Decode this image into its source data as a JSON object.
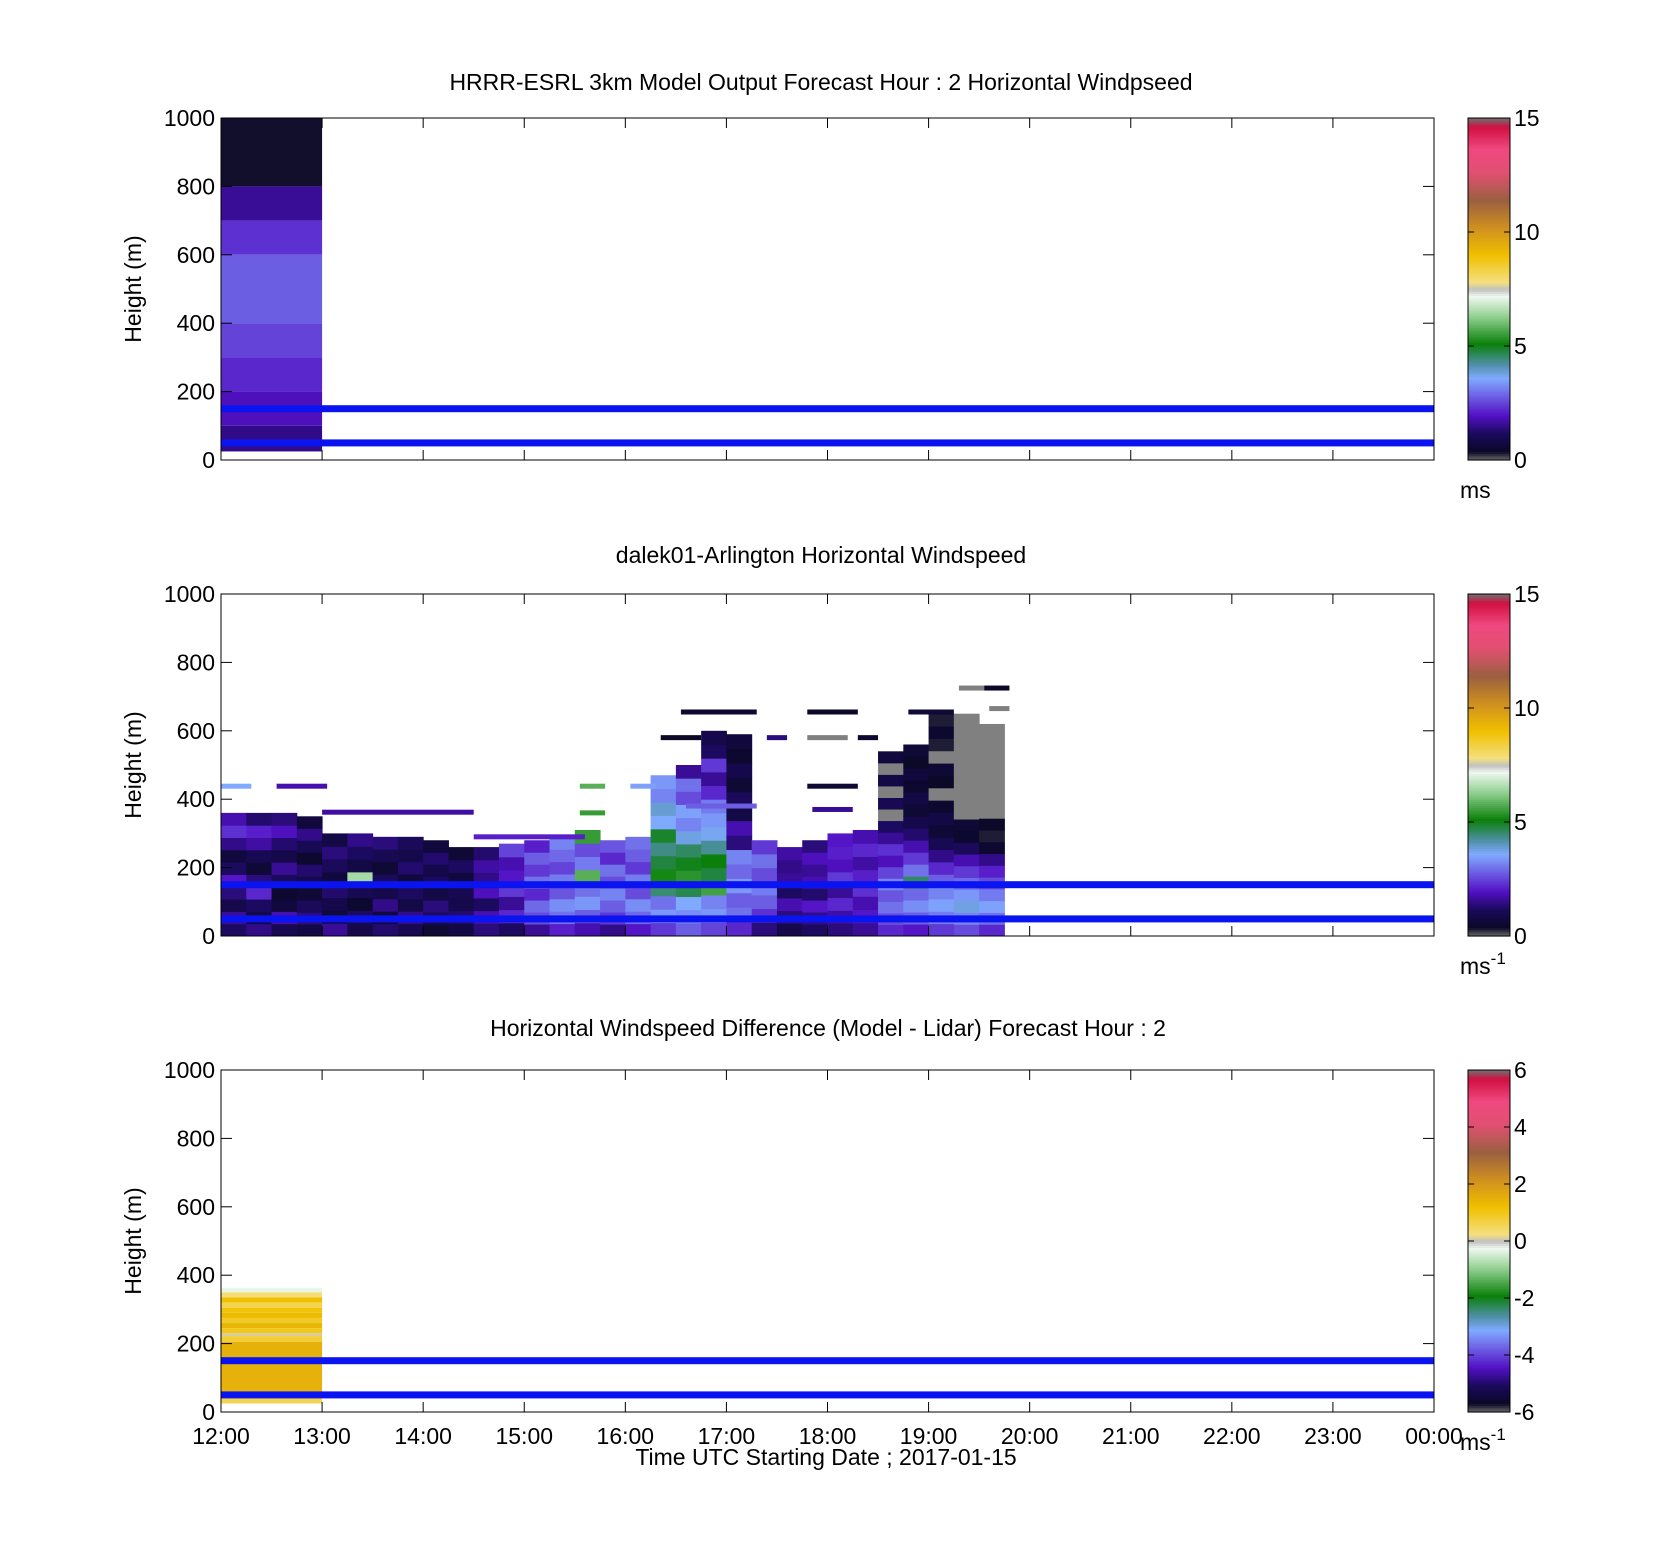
{
  "figure": {
    "xlabel": "Time UTC  Starting Date ; 2017-01-15",
    "x_ticks": [
      "12:00",
      "13:00",
      "14:00",
      "15:00",
      "16:00",
      "17:00",
      "18:00",
      "19:00",
      "20:00",
      "21:00",
      "22:00",
      "23:00",
      "00:00"
    ]
  },
  "chart_data": [
    {
      "type": "heatmap",
      "title": "HRRR-ESRL 3km Model Output   Forecast Hour : 2 Horizontal Windpseed",
      "ylabel": "Height (m)",
      "xlim_hours": [
        12,
        24
      ],
      "ylim": [
        0,
        1000
      ],
      "y_ticks": [
        "1000",
        "800",
        "600",
        "400",
        "200",
        "0"
      ],
      "colorbar": {
        "min": 0,
        "max": 15,
        "ticks": [
          "15",
          "10",
          "5",
          "0"
        ],
        "unit_base": "ms",
        "unit_sup": ""
      },
      "reference_lines_m": [
        150,
        50
      ],
      "reference_line_color": "#0a14f0",
      "cells": [
        {
          "t0": 12,
          "t1": 13,
          "h0": 800,
          "h1": 1000,
          "v": 0.35
        },
        {
          "t0": 12,
          "t1": 13,
          "h0": 700,
          "h1": 800,
          "v": 1.6
        },
        {
          "t0": 12,
          "t1": 13,
          "h0": 600,
          "h1": 700,
          "v": 2.3
        },
        {
          "t0": 12,
          "t1": 13,
          "h0": 400,
          "h1": 600,
          "v": 2.8
        },
        {
          "t0": 12,
          "t1": 13,
          "h0": 300,
          "h1": 400,
          "v": 2.5
        },
        {
          "t0": 12,
          "t1": 13,
          "h0": 200,
          "h1": 300,
          "v": 2.2
        },
        {
          "t0": 12,
          "t1": 13,
          "h0": 100,
          "h1": 200,
          "v": 1.9
        },
        {
          "t0": 12,
          "t1": 13,
          "h0": 25,
          "h1": 100,
          "v": 1.5
        }
      ]
    },
    {
      "type": "heatmap",
      "title": "dalek01-Arlington  Horizontal Windspeed",
      "ylabel": "Height (m)",
      "xlim_hours": [
        12,
        24
      ],
      "ylim": [
        0,
        1000
      ],
      "y_ticks": [
        "1000",
        "800",
        "600",
        "400",
        "200",
        "0"
      ],
      "colorbar": {
        "min": 0,
        "max": 15,
        "ticks": [
          "15",
          "10",
          "5",
          "0"
        ],
        "unit_base": "ms",
        "unit_sup": "-1"
      },
      "reference_lines_m": [
        150,
        50
      ],
      "reference_line_color": "#0a14f0",
      "columns": [
        {
          "t0": 12.0,
          "t1": 12.25,
          "top": 360,
          "v": [
            1.2,
            1.6,
            0.9,
            1.4,
            2.0,
            1.2,
            0.7,
            1.5,
            2.3,
            1.8
          ]
        },
        {
          "t0": 12.25,
          "t1": 12.5,
          "top": 360,
          "v": [
            1.5,
            0.8,
            1.2,
            2.2,
            1.4,
            0.6,
            1.0,
            1.7,
            2.1,
            1.3
          ]
        },
        {
          "t0": 12.5,
          "t1": 12.75,
          "top": 360,
          "v": [
            1.0,
            1.8,
            0.7,
            0.5,
            1.1,
            1.6,
            0.9,
            1.3,
            1.9,
            1.4
          ]
        },
        {
          "t0": 12.75,
          "t1": 13.0,
          "top": 350,
          "v": [
            0.8,
            1.4,
            1.1,
            0.6,
            0.9,
            1.3,
            0.5,
            1.0,
            1.5,
            0.7
          ]
        },
        {
          "t0": 13.0,
          "t1": 13.25,
          "top": 300,
          "v": [
            1.6,
            0.6,
            0.9,
            1.3,
            0.7,
            1.1,
            1.4,
            0.8
          ]
        },
        {
          "t0": 13.25,
          "t1": 13.5,
          "top": 300,
          "v": [
            0.9,
            1.2,
            0.5,
            1.0,
            6.5,
            0.8,
            1.2,
            1.5
          ]
        },
        {
          "t0": 13.5,
          "t1": 13.75,
          "top": 290,
          "v": [
            1.3,
            0.7,
            1.5,
            0.9,
            1.1,
            0.6,
            1.0,
            1.4
          ]
        },
        {
          "t0": 13.75,
          "t1": 14.0,
          "top": 290,
          "v": [
            1.0,
            1.5,
            0.8,
            1.2,
            0.7,
            1.3,
            0.9,
            1.1
          ]
        },
        {
          "t0": 14.0,
          "t1": 14.25,
          "top": 280,
          "v": [
            0.6,
            1.1,
            1.4,
            0.8,
            1.2,
            0.9,
            1.3,
            0.7
          ]
        },
        {
          "t0": 14.25,
          "t1": 14.5,
          "top": 260,
          "v": [
            0.8,
            1.3,
            0.9,
            1.0,
            0.7,
            1.2,
            0.6
          ]
        },
        {
          "t0": 14.5,
          "t1": 14.75,
          "top": 260,
          "v": [
            1.4,
            1.8,
            1.2,
            1.9,
            1.5,
            1.7,
            1.3
          ]
        },
        {
          "t0": 14.75,
          "t1": 15.0,
          "top": 270,
          "v": [
            1.2,
            2.2,
            1.6,
            2.4,
            2.0,
            1.8,
            2.5
          ]
        },
        {
          "t0": 15.0,
          "t1": 15.25,
          "top": 280,
          "v": [
            1.6,
            2.6,
            2.9,
            2.2,
            3.0,
            2.4,
            2.8,
            2.1
          ]
        },
        {
          "t0": 15.25,
          "t1": 15.5,
          "top": 290,
          "v": [
            2.1,
            3.0,
            3.3,
            2.7,
            3.1,
            2.5,
            2.9,
            3.2
          ]
        },
        {
          "t0": 15.5,
          "t1": 15.75,
          "top": 310,
          "v": [
            1.8,
            2.8,
            3.4,
            3.0,
            5.8,
            3.1,
            2.6,
            5.5
          ]
        },
        {
          "t0": 15.75,
          "t1": 16.0,
          "top": 280,
          "v": [
            1.5,
            2.4,
            2.8,
            3.2,
            2.6,
            3.0,
            2.2,
            2.7
          ]
        },
        {
          "t0": 16.0,
          "t1": 16.25,
          "top": 290,
          "v": [
            2.0,
            2.9,
            3.3,
            2.6,
            3.1,
            2.4,
            2.8,
            3.0
          ]
        },
        {
          "t0": 16.25,
          "t1": 16.5,
          "top": 470,
          "v": [
            2.4,
            3.4,
            3.0,
            4.5,
            5.2,
            4.8,
            4.4,
            4.9,
            3.6,
            3.9,
            3.2,
            3.4
          ]
        },
        {
          "t0": 16.5,
          "t1": 16.75,
          "top": 500,
          "v": [
            2.8,
            3.3,
            3.6,
            4.7,
            5.4,
            5.0,
            4.6,
            3.8,
            3.2,
            3.5,
            2.6,
            3.0,
            1.6
          ]
        },
        {
          "t0": 16.75,
          "t1": 17.0,
          "top": 600,
          "v": [
            2.5,
            3.4,
            3.2,
            5.6,
            4.8,
            5.1,
            4.3,
            3.7,
            3.4,
            3.1,
            2.2,
            1.6,
            2.4,
            1.2,
            0.9
          ]
        },
        {
          "t0": 17.0,
          "t1": 17.25,
          "top": 590,
          "v": [
            2.2,
            3.0,
            2.8,
            3.4,
            2.9,
            3.2,
            1.4,
            1.8,
            0.8,
            1.1,
            0.6,
            0.9,
            0.5,
            0.7
          ]
        },
        {
          "t0": 17.25,
          "t1": 17.5,
          "top": 280,
          "v": [
            1.4,
            2.3,
            2.8,
            3.1,
            2.6,
            3.0,
            2.4
          ]
        },
        {
          "t0": 17.5,
          "t1": 17.75,
          "top": 260,
          "v": [
            0.9,
            1.4,
            1.8,
            1.2,
            1.6,
            1.5,
            1.7
          ]
        },
        {
          "t0": 17.75,
          "t1": 18.0,
          "top": 280,
          "v": [
            1.2,
            1.5,
            2.0,
            1.3,
            1.8,
            1.6,
            1.9,
            1.4
          ]
        },
        {
          "t0": 18.0,
          "t1": 18.25,
          "top": 300,
          "v": [
            1.4,
            1.7,
            2.2,
            1.6,
            2.4,
            1.9,
            2.1,
            2.0
          ]
        },
        {
          "t0": 18.25,
          "t1": 18.5,
          "top": 310,
          "v": [
            1.6,
            2.0,
            1.8,
            2.3,
            2.1,
            1.7,
            2.2,
            1.8
          ]
        },
        {
          "t0": 18.5,
          "t1": 18.75,
          "top": 540,
          "v": [
            2.2,
            2.6,
            3.0,
            2.7,
            3.2,
            2.5,
            1.9,
            2.3,
            1.6,
            1.2,
            15.5,
            1.0,
            15.5,
            0.8,
            15.5,
            0.7
          ]
        },
        {
          "t0": 18.75,
          "t1": 19.0,
          "top": 560,
          "v": [
            2.0,
            2.8,
            3.3,
            2.9,
            4.6,
            3.0,
            2.4,
            1.8,
            1.3,
            0.9,
            0.6,
            0.8,
            0.5,
            0.7,
            0.4,
            0.6
          ]
        },
        {
          "t0": 19.0,
          "t1": 19.25,
          "top": 650,
          "v": [
            2.4,
            3.1,
            3.5,
            3.2,
            2.8,
            2.2,
            1.5,
            1.0,
            0.6,
            0.8,
            0.5,
            15.5,
            0.4,
            0.6,
            15.5,
            0.3,
            0.5,
            0.3
          ]
        },
        {
          "t0": 19.25,
          "t1": 19.5,
          "top": 650,
          "v": [
            2.6,
            3.2,
            3.8,
            3.4,
            2.9,
            2.4,
            1.8,
            1.1,
            0.5,
            0.6,
            15.5,
            15.5,
            15.5,
            15.5,
            15.5,
            15.5,
            15.5,
            15.5,
            15.5
          ]
        },
        {
          "t0": 19.5,
          "t1": 19.75,
          "top": 620,
          "v": [
            2.2,
            3.0,
            3.5,
            3.1,
            2.6,
            2.1,
            1.5,
            0.5,
            0.3,
            0.4,
            15.5,
            15.5,
            15.5,
            15.5,
            15.5,
            15.5,
            15.5,
            15.5
          ]
        }
      ],
      "streaks": [
        {
          "t0": 12.0,
          "t1": 12.3,
          "h": 438,
          "v": 3.6
        },
        {
          "t0": 12.55,
          "t1": 13.05,
          "h": 438,
          "v": 1.8
        },
        {
          "t0": 15.55,
          "t1": 15.8,
          "h": 438,
          "v": 5.8
        },
        {
          "t0": 15.55,
          "t1": 15.8,
          "h": 360,
          "v": 5.5
        },
        {
          "t0": 16.05,
          "t1": 16.3,
          "h": 438,
          "v": 3.5
        },
        {
          "t0": 16.55,
          "t1": 17.3,
          "h": 655,
          "v": 0.5
        },
        {
          "t0": 16.35,
          "t1": 16.75,
          "h": 580,
          "v": 0.4
        },
        {
          "t0": 17.4,
          "t1": 17.6,
          "h": 580,
          "v": 1.4
        },
        {
          "t0": 17.8,
          "t1": 18.3,
          "h": 655,
          "v": 0.4
        },
        {
          "t0": 17.8,
          "t1": 18.2,
          "h": 580,
          "v": 15.5
        },
        {
          "t0": 18.3,
          "t1": 18.5,
          "h": 580,
          "v": 0.5
        },
        {
          "t0": 17.8,
          "t1": 18.3,
          "h": 438,
          "v": 0.6
        },
        {
          "t0": 17.85,
          "t1": 18.25,
          "h": 370,
          "v": 1.6
        },
        {
          "t0": 18.8,
          "t1": 19.25,
          "h": 655,
          "v": 0.6
        },
        {
          "t0": 19.3,
          "t1": 19.55,
          "h": 725,
          "v": 15.5
        },
        {
          "t0": 19.55,
          "t1": 19.8,
          "h": 725,
          "v": 0.4
        },
        {
          "t0": 19.6,
          "t1": 19.8,
          "h": 665,
          "v": 15.5
        },
        {
          "t0": 13.0,
          "t1": 14.5,
          "h": 362,
          "v": 1.7
        },
        {
          "t0": 14.5,
          "t1": 15.6,
          "h": 290,
          "v": 2.1
        },
        {
          "t0": 16.6,
          "t1": 17.3,
          "h": 380,
          "v": 2.8
        }
      ]
    },
    {
      "type": "heatmap",
      "title": "Horizontal Windspeed Difference (Model - Lidar) Forecast Hour : 2",
      "ylabel": "Height (m)",
      "xlim_hours": [
        12,
        24
      ],
      "ylim": [
        0,
        1000
      ],
      "y_ticks": [
        "1000",
        "800",
        "600",
        "400",
        "200",
        "0"
      ],
      "colorbar": {
        "min": -6,
        "max": 6,
        "ticks": [
          "6",
          "4",
          "2",
          "0",
          "-2",
          "-4",
          "-6"
        ],
        "unit_base": "ms",
        "unit_sup": "-1"
      },
      "reference_lines_m": [
        150,
        50
      ],
      "reference_line_color": "#0a14f0",
      "cells": [
        {
          "t0": 12,
          "t1": 13,
          "h0": 350,
          "h1": 362,
          "v": -0.3
        },
        {
          "t0": 12,
          "t1": 13,
          "h0": 335,
          "h1": 350,
          "v": 0.3
        },
        {
          "t0": 12,
          "t1": 13,
          "h0": 320,
          "h1": 335,
          "v": 1.2
        },
        {
          "t0": 12,
          "t1": 13,
          "h0": 305,
          "h1": 320,
          "v": 0.6
        },
        {
          "t0": 12,
          "t1": 13,
          "h0": 290,
          "h1": 305,
          "v": 1.1
        },
        {
          "t0": 12,
          "t1": 13,
          "h0": 275,
          "h1": 290,
          "v": 1.3
        },
        {
          "t0": 12,
          "t1": 13,
          "h0": 260,
          "h1": 275,
          "v": 0.9
        },
        {
          "t0": 12,
          "t1": 13,
          "h0": 245,
          "h1": 260,
          "v": 1.4
        },
        {
          "t0": 12,
          "t1": 13,
          "h0": 230,
          "h1": 245,
          "v": 1.0
        },
        {
          "t0": 12,
          "t1": 13,
          "h0": 222,
          "h1": 230,
          "v": 0.1
        },
        {
          "t0": 12,
          "t1": 13,
          "h0": 205,
          "h1": 222,
          "v": 0.8
        },
        {
          "t0": 12,
          "t1": 13,
          "h0": 40,
          "h1": 205,
          "v": 1.5
        },
        {
          "t0": 12,
          "t1": 13,
          "h0": 25,
          "h1": 40,
          "v": 0.6
        }
      ]
    }
  ]
}
